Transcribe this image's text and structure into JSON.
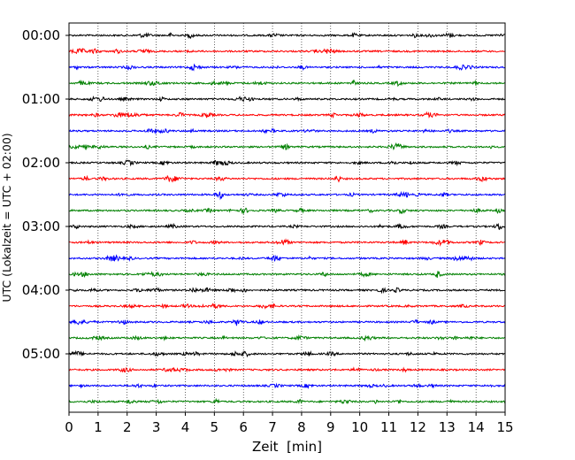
{
  "chart_data": {
    "type": "line",
    "title": "",
    "xlabel": "Zeit  [min]",
    "ylabel": "UTC (Lokalzeit = UTC + 02:00)",
    "xlim": [
      0,
      15
    ],
    "x_ticks": [
      "0",
      "1",
      "2",
      "3",
      "4",
      "5",
      "6",
      "7",
      "8",
      "9",
      "10",
      "11",
      "12",
      "13",
      "14",
      "15"
    ],
    "y_tick_labels": [
      "00:00",
      "01:00",
      "02:00",
      "03:00",
      "04:00",
      "05:00"
    ],
    "y_tick_traces": [
      0,
      4,
      8,
      12,
      16,
      20
    ],
    "grid": "vertical dotted",
    "trace_colors": [
      "#000000",
      "#ff0000",
      "#0000ff",
      "#008000"
    ],
    "trace_interval_minutes": 15,
    "trace_count": 24
  }
}
